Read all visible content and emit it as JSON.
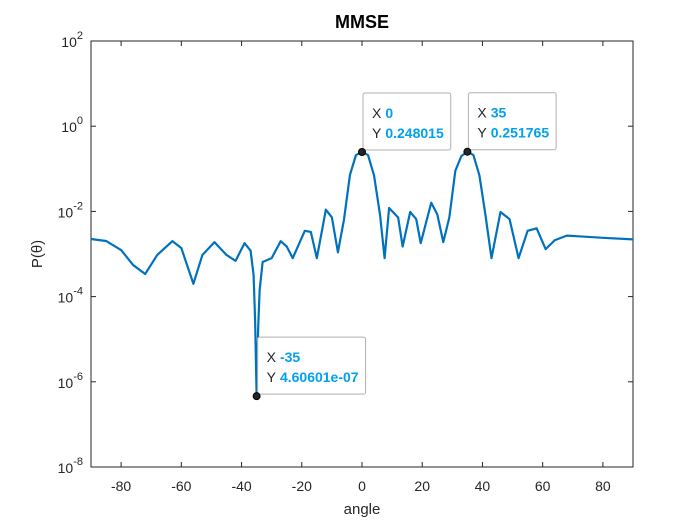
{
  "chart_data": {
    "type": "line",
    "title": "MMSE",
    "xlabel": "angle",
    "ylabel": "P(θ)",
    "x": [
      -90,
      -85,
      -80,
      -76,
      -72,
      -68,
      -63,
      -60,
      -56,
      -53,
      -49,
      -45,
      -42,
      -39,
      -37,
      -36,
      -35.5,
      -35,
      -34.5,
      -34,
      -33,
      -30,
      -27,
      -25,
      -23,
      -19,
      -17,
      -15,
      -12,
      -10,
      -8,
      -6,
      -4,
      -2,
      0,
      2,
      4,
      6,
      7.5,
      9,
      12,
      13.5,
      16,
      18,
      19.5,
      23,
      25,
      27,
      29,
      31,
      33,
      35,
      37,
      39,
      41,
      43,
      46,
      49,
      52,
      55,
      58,
      61,
      64,
      68,
      72,
      80,
      90
    ],
    "values": [
      0.00225,
      0.00202,
      0.00124,
      0.00055,
      0.00034,
      0.00095,
      0.002,
      0.00138,
      0.0002,
      0.00095,
      0.0019,
      0.00095,
      0.00069,
      0.0018,
      0.0012,
      0.00032,
      2.8e-05,
      4.60601e-07,
      1.7e-05,
      0.00014,
      0.00065,
      0.0008,
      0.002,
      0.0015,
      0.0008,
      0.0035,
      0.0033,
      0.0008,
      0.011,
      0.0072,
      0.0011,
      0.0063,
      0.072,
      0.21,
      0.248015,
      0.21,
      0.07,
      0.0082,
      0.0008,
      0.012,
      0.0072,
      0.0015,
      0.0097,
      0.0066,
      0.0018,
      0.016,
      0.0085,
      0.0019,
      0.0072,
      0.09,
      0.2,
      0.251765,
      0.21,
      0.07,
      0.0082,
      0.0008,
      0.0097,
      0.0066,
      0.0008,
      0.0035,
      0.004,
      0.0013,
      0.0021,
      0.0027,
      0.0026,
      0.0024,
      0.0022
    ],
    "color": "#0072bd",
    "log_y": true,
    "xlim": [
      -90,
      90
    ],
    "xticks": [
      -80,
      -60,
      -40,
      -20,
      0,
      20,
      40,
      60,
      80
    ],
    "ylim": [
      1e-08,
      100
    ],
    "yticks": [
      {
        "value": 1e-08,
        "label": "10",
        "exponent": "-8"
      },
      {
        "value": 1e-06,
        "label": "10",
        "exponent": "-6"
      },
      {
        "value": 0.0001,
        "label": "10",
        "exponent": "-4"
      },
      {
        "value": 0.01,
        "label": "10",
        "exponent": "-2"
      },
      {
        "value": 1,
        "label": "10",
        "exponent": "0"
      },
      {
        "value": 100,
        "label": "10",
        "exponent": "2"
      }
    ],
    "annotations": [
      {
        "x_name": "X",
        "x": 0,
        "y_name": "Y",
        "y": 0.248015
      },
      {
        "x_name": "X",
        "x": 35,
        "y_name": "Y",
        "y": 0.251765
      },
      {
        "x_name": "X",
        "x": -35,
        "y_name": "Y",
        "y": 4.60601e-07,
        "y_label": "4.60601e-07"
      }
    ]
  }
}
